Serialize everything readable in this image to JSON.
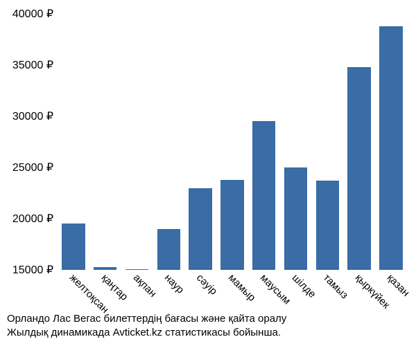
{
  "chart": {
    "type": "bar",
    "bar_color": "#3a6ca5",
    "background_color": "#ffffff",
    "text_color": "#000000",
    "y_min": 15000,
    "y_max": 40000,
    "y_ticks": [
      15000,
      20000,
      25000,
      30000,
      35000,
      40000
    ],
    "y_tick_labels": [
      "15000 ₽",
      "20000 ₽",
      "25000 ₽",
      "30000 ₽",
      "35000 ₽",
      "40000 ₽"
    ],
    "categories": [
      "желтоқсан",
      "қаңтар",
      "ақпан",
      "наур",
      "сәуір",
      "мамыр",
      "маусым",
      "шілде",
      "тамыз",
      "қыркүйек",
      "қазан"
    ],
    "values": [
      19500,
      15300,
      15100,
      19000,
      23000,
      23800,
      29500,
      25000,
      23700,
      34800,
      38800
    ],
    "label_fontsize": 16,
    "xlabel_fontsize": 15
  },
  "caption": {
    "line1": "Орландо Лас Вегас билеттердің бағасы және қайта оралу",
    "line2": "Жылдық динамикада Avticket.kz статистикасы бойынша."
  }
}
